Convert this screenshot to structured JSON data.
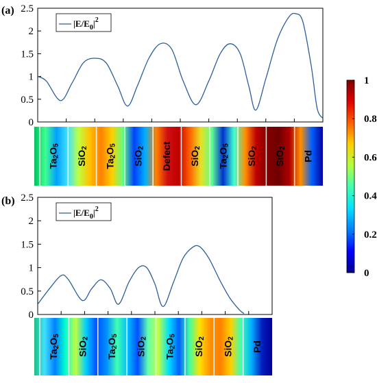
{
  "chart_data": [
    {
      "panel": "(a)",
      "type": "line",
      "ylim": [
        0,
        2.5
      ],
      "yticks": [
        "0",
        "0.5",
        "1",
        "1.5",
        "2",
        "2.5"
      ],
      "series": [
        {
          "name": "|E/E0|^2",
          "color": "#2b5d9c",
          "points": [
            [
              0,
              1.0
            ],
            [
              0.03,
              0.9
            ],
            [
              0.08,
              0.47
            ],
            [
              0.12,
              0.85
            ],
            [
              0.16,
              1.3
            ],
            [
              0.2,
              1.4
            ],
            [
              0.24,
              1.3
            ],
            [
              0.28,
              0.8
            ],
            [
              0.315,
              0.35
            ],
            [
              0.35,
              0.8
            ],
            [
              0.39,
              1.4
            ],
            [
              0.43,
              1.72
            ],
            [
              0.47,
              1.6
            ],
            [
              0.51,
              0.9
            ],
            [
              0.555,
              0.38
            ],
            [
              0.6,
              0.9
            ],
            [
              0.64,
              1.5
            ],
            [
              0.675,
              1.72
            ],
            [
              0.71,
              1.5
            ],
            [
              0.74,
              0.8
            ],
            [
              0.765,
              0.26
            ],
            [
              0.8,
              0.95
            ],
            [
              0.84,
              1.8
            ],
            [
              0.88,
              2.3
            ],
            [
              0.905,
              2.38
            ],
            [
              0.93,
              2.2
            ],
            [
              0.96,
              1.2
            ],
            [
              0.98,
              0.3
            ],
            [
              1.0,
              0.08
            ]
          ]
        }
      ],
      "legend": {
        "label": "|E/E",
        "sub": "0",
        "sup": "2",
        "position": "top-left"
      },
      "layers": [
        {
          "label": "Ta",
          "sub1": "2",
          "mid": "O",
          "sub2": "5"
        },
        {
          "label": "SiO",
          "sub1": "2"
        },
        {
          "label": "Ta",
          "sub1": "2",
          "mid": "O",
          "sub2": "5"
        },
        {
          "label": "SiO",
          "sub1": "2"
        },
        {
          "label": "Defect"
        },
        {
          "label": "SiO",
          "sub1": "2"
        },
        {
          "label": "Ta",
          "sub1": "2",
          "mid": "O",
          "sub2": "5"
        },
        {
          "label": "SiO",
          "sub1": "2"
        },
        {
          "label": "SiO",
          "sub1": "2"
        },
        {
          "label": "Pd"
        }
      ]
    },
    {
      "panel": "(b)",
      "type": "line",
      "ylim": [
        0,
        2.5
      ],
      "yticks": [
        "0",
        "0.5",
        "1",
        "1.5",
        "2",
        "2.5"
      ],
      "series": [
        {
          "name": "|E/E0|^2",
          "color": "#2b5d9c",
          "points": [
            [
              0,
              0.22
            ],
            [
              0.05,
              0.55
            ],
            [
              0.1,
              0.83
            ],
            [
              0.13,
              0.75
            ],
            [
              0.19,
              0.3
            ],
            [
              0.23,
              0.55
            ],
            [
              0.27,
              0.74
            ],
            [
              0.31,
              0.55
            ],
            [
              0.345,
              0.22
            ],
            [
              0.39,
              0.7
            ],
            [
              0.43,
              1.0
            ],
            [
              0.465,
              1.0
            ],
            [
              0.5,
              0.65
            ],
            [
              0.535,
              0.17
            ],
            [
              0.58,
              0.7
            ],
            [
              0.62,
              1.2
            ],
            [
              0.66,
              1.43
            ],
            [
              0.69,
              1.45
            ],
            [
              0.73,
              1.2
            ],
            [
              0.78,
              0.7
            ],
            [
              0.82,
              0.35
            ],
            [
              0.86,
              0.1
            ],
            [
              0.88,
              0.02
            ]
          ]
        }
      ],
      "legend": {
        "label": "|E/E",
        "sub": "0",
        "sup": "2",
        "position": "top-left"
      },
      "layers": [
        {
          "label": "Ta",
          "sub1": "2",
          "mid": "O",
          "sub2": "5"
        },
        {
          "label": "SiO",
          "sub1": "2"
        },
        {
          "label": "Ta",
          "sub1": "2",
          "mid": "O",
          "sub2": "5"
        },
        {
          "label": "SiO",
          "sub1": "2"
        },
        {
          "label": "Ta",
          "sub1": "2",
          "mid": "O",
          "sub2": "5"
        },
        {
          "label": "SiO",
          "sub1": "2"
        },
        {
          "label": "SiO",
          "sub1": "2"
        },
        {
          "label": "Pd"
        }
      ]
    },
    {
      "type": "colorbar",
      "ticks": [
        "0",
        "0.2",
        "0.4",
        "0.6",
        "0.8",
        "1"
      ],
      "range": [
        0,
        1
      ],
      "colors": [
        "#00008b",
        "#0000ff",
        "#0080ff",
        "#00e0ff",
        "#40ffb0",
        "#b0ff40",
        "#ffd000",
        "#ff6000",
        "#e00000",
        "#800000"
      ]
    }
  ]
}
